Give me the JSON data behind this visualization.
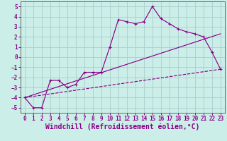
{
  "background_color": "#cceee8",
  "grid_color": "#aacccc",
  "line_color": "#880088",
  "xlabel": "Windchill (Refroidissement éolien,°C)",
  "xlabel_fontsize": 7,
  "ylim": [
    -5.5,
    5.5
  ],
  "xlim": [
    -0.5,
    23.5
  ],
  "yticks": [
    -5,
    -4,
    -3,
    -2,
    -1,
    0,
    1,
    2,
    3,
    4,
    5
  ],
  "xticks": [
    0,
    1,
    2,
    3,
    4,
    5,
    6,
    7,
    8,
    9,
    10,
    11,
    12,
    13,
    14,
    15,
    16,
    17,
    18,
    19,
    20,
    21,
    22,
    23
  ],
  "line1_x": [
    0,
    1,
    2,
    3,
    4,
    5,
    6,
    7,
    8,
    9,
    10,
    11,
    12,
    13,
    14,
    15,
    16,
    17,
    18,
    19,
    20,
    21,
    22,
    23
  ],
  "line1_y": [
    -4.0,
    -5.0,
    -5.0,
    -2.3,
    -2.3,
    -3.0,
    -2.7,
    -1.5,
    -1.5,
    -1.5,
    1.0,
    3.7,
    3.5,
    3.3,
    3.5,
    5.0,
    3.8,
    3.3,
    2.8,
    2.5,
    2.3,
    2.0,
    0.5,
    -1.2
  ],
  "line2_x": [
    0,
    23
  ],
  "line2_y": [
    -4.0,
    -1.2
  ],
  "line3_x": [
    0,
    23
  ],
  "line3_y": [
    -4.0,
    2.3
  ],
  "tick_fontsize": 5.5
}
